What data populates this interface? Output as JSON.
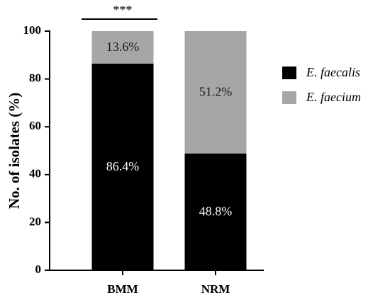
{
  "chart_data": {
    "type": "stacked_bar",
    "y_label": "No. of isolates (%)",
    "annotation": "***",
    "categories": [
      "BMM",
      "NRM"
    ],
    "series": [
      {
        "name": "E. faecalis",
        "color": "#000000",
        "values": [
          86.4,
          48.8
        ],
        "value_labels": [
          "86.4%",
          "48.8%"
        ],
        "label_color": "#ffffff"
      },
      {
        "name": "E. faecium",
        "color": "#a6a6a8",
        "values": [
          13.6,
          51.2
        ],
        "value_labels": [
          "13.6%",
          "51.2%"
        ],
        "label_color": "#1a1a1a"
      }
    ],
    "ylim": [
      0,
      100
    ],
    "yticks": [
      0,
      20,
      40,
      60,
      80,
      100
    ],
    "legend": "right"
  }
}
